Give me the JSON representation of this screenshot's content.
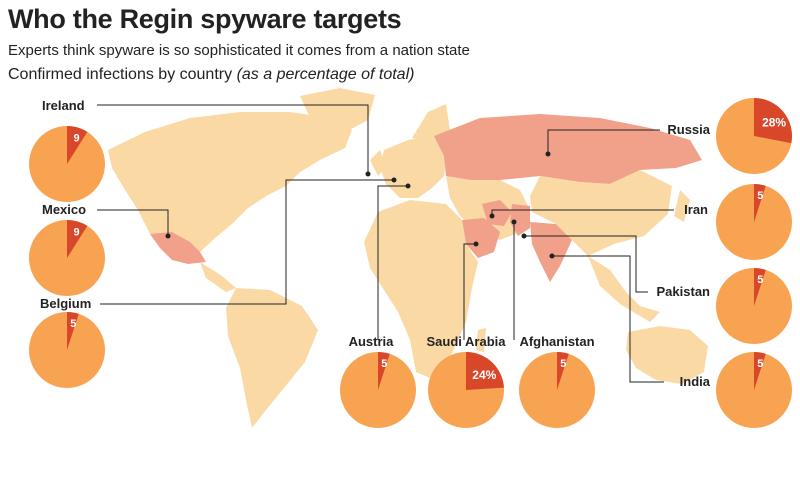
{
  "header": {
    "title": "Who the Regin spyware targets",
    "subtitle": "Experts think spyware is so sophisticated it comes from a nation state",
    "note_main": "Confirmed infections by country",
    "note_paren": "(as a percentage of total)"
  },
  "colors": {
    "pie_base": "#f7a352",
    "pie_slice": "#d9472b",
    "land": "#fbd9a5",
    "highlight_country": "#f1a08a",
    "leader": "#222222"
  },
  "chart_data": {
    "type": "pie",
    "title": "Who the Regin spyware targets",
    "unit": "% of total confirmed infections",
    "series": [
      {
        "country": "Russia",
        "value": 28,
        "label": "28%"
      },
      {
        "country": "Saudi Arabia",
        "value": 24,
        "label": "24%"
      },
      {
        "country": "Ireland",
        "value": 9,
        "label": "9"
      },
      {
        "country": "Mexico",
        "value": 9,
        "label": "9"
      },
      {
        "country": "Belgium",
        "value": 5,
        "label": "5"
      },
      {
        "country": "Austria",
        "value": 5,
        "label": "5"
      },
      {
        "country": "Afghanistan",
        "value": 5,
        "label": "5"
      },
      {
        "country": "Iran",
        "value": 5,
        "label": "5"
      },
      {
        "country": "Pakistan",
        "value": 5,
        "label": "5"
      },
      {
        "country": "India",
        "value": 5,
        "label": "5"
      }
    ]
  }
}
